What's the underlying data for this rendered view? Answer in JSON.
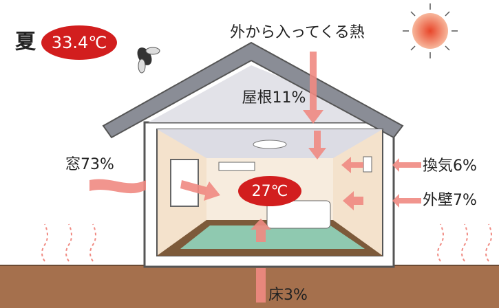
{
  "season": {
    "label": "夏",
    "temperature": "33.4℃"
  },
  "title": "外から入ってくる熱",
  "indoor_temperature": "27℃",
  "sources": [
    {
      "label": "屋根11%"
    },
    {
      "label": "窓73%"
    },
    {
      "label": "換気6%"
    },
    {
      "label": "外壁7%"
    },
    {
      "label": "床3%"
    }
  ]
}
